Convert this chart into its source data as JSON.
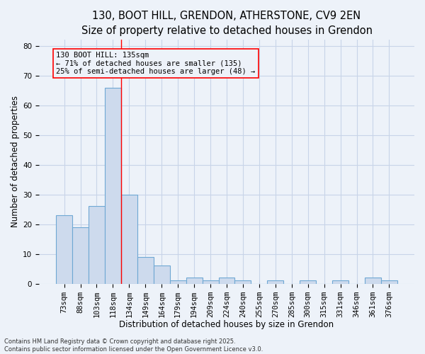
{
  "title1": "130, BOOT HILL, GRENDON, ATHERSTONE, CV9 2EN",
  "title2": "Size of property relative to detached houses in Grendon",
  "xlabel": "Distribution of detached houses by size in Grendon",
  "ylabel": "Number of detached properties",
  "categories": [
    "73sqm",
    "88sqm",
    "103sqm",
    "118sqm",
    "134sqm",
    "149sqm",
    "164sqm",
    "179sqm",
    "194sqm",
    "209sqm",
    "224sqm",
    "240sqm",
    "255sqm",
    "270sqm",
    "285sqm",
    "300sqm",
    "315sqm",
    "331sqm",
    "346sqm",
    "361sqm",
    "376sqm"
  ],
  "values": [
    23,
    19,
    26,
    66,
    30,
    9,
    6,
    1,
    2,
    1,
    2,
    1,
    0,
    1,
    0,
    1,
    0,
    1,
    0,
    2,
    1
  ],
  "bar_color": "#cddaed",
  "bar_edge_color": "#6fa8d4",
  "bar_edge_width": 0.8,
  "grid_color": "#c8d4e8",
  "bg_color": "#edf2f9",
  "annotation_box_text": "130 BOOT HILL: 135sqm\n← 71% of detached houses are smaller (135)\n25% of semi-detached houses are larger (48) →",
  "footer": "Contains HM Land Registry data © Crown copyright and database right 2025.\nContains public sector information licensed under the Open Government Licence v3.0.",
  "ylim": [
    0,
    82
  ],
  "yticks": [
    0,
    10,
    20,
    30,
    40,
    50,
    60,
    70,
    80
  ],
  "title_fontsize": 10.5,
  "subtitle_fontsize": 9.5,
  "axis_fontsize": 8.5,
  "tick_fontsize": 7.5,
  "annotation_fontsize": 7.5,
  "footer_fontsize": 6.0
}
